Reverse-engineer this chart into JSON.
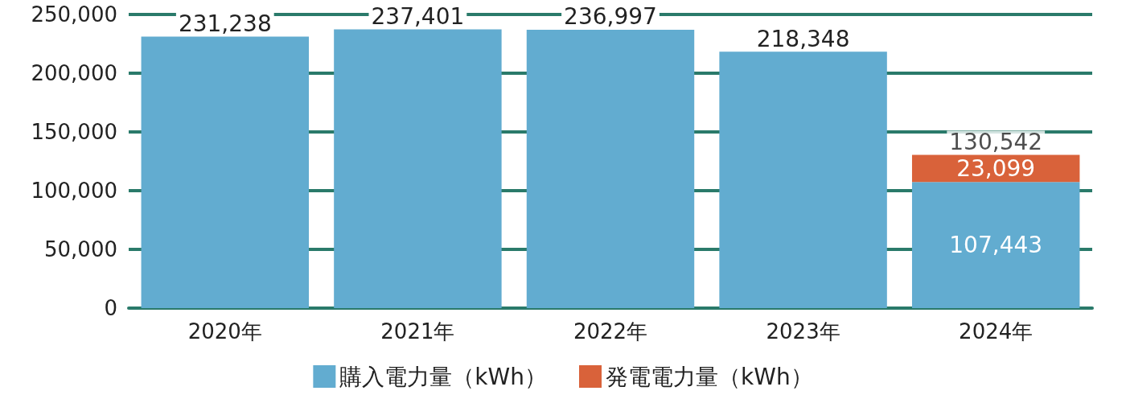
{
  "chart_data": {
    "type": "bar",
    "stacked": true,
    "categories": [
      "2020年",
      "2021年",
      "2022年",
      "2023年",
      "2024年"
    ],
    "series": [
      {
        "name": "購入電力量（kWh）",
        "color": "#62acd0",
        "values": [
          231238,
          237401,
          236997,
          218348,
          107443
        ],
        "value_labels": [
          "231,238",
          "237,401",
          "236,997",
          "218,348",
          "107,443"
        ]
      },
      {
        "name": "発電電力量（kWh）",
        "color": "#d9623a",
        "values": [
          null,
          null,
          null,
          null,
          23099
        ],
        "value_labels": [
          null,
          null,
          null,
          null,
          "23,099"
        ]
      }
    ],
    "totals": [
      null,
      null,
      null,
      null,
      "130,542"
    ],
    "ylim": [
      0,
      250000
    ],
    "yticks": [
      {
        "value": 0,
        "label": "0"
      },
      {
        "value": 50000,
        "label": "50,000"
      },
      {
        "value": 100000,
        "label": "100,000"
      },
      {
        "value": 150000,
        "label": "150,000"
      },
      {
        "value": 200000,
        "label": "200,000"
      },
      {
        "value": 250000,
        "label": "250,000"
      }
    ],
    "grid": "y",
    "legend": "bottom"
  }
}
